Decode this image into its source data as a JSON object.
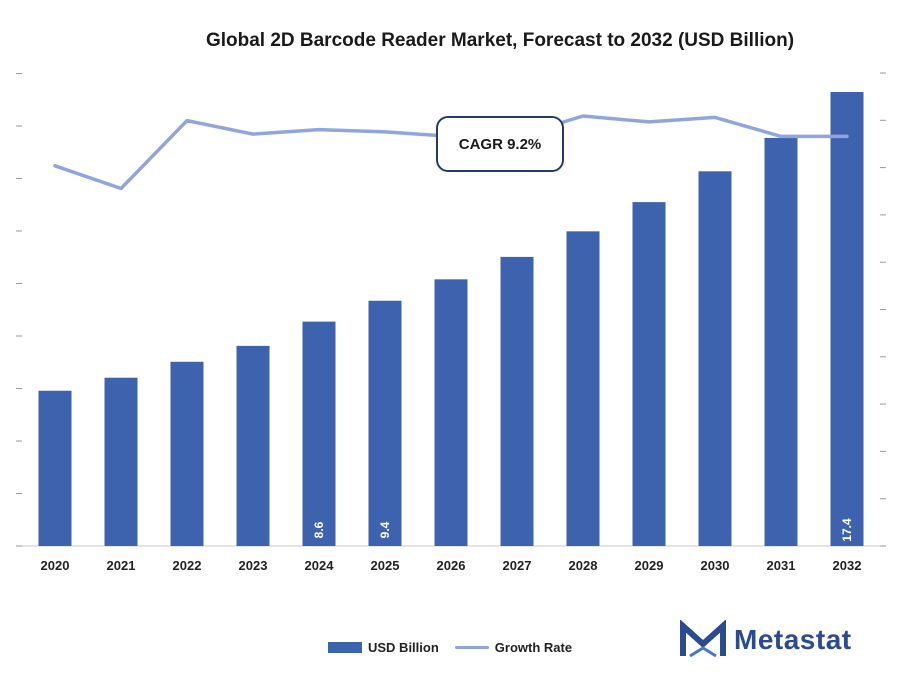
{
  "chart_data": {
    "type": "bar",
    "title": "Global 2D Barcode Reader Market, Forecast to 2032 (USD Billion)",
    "categories": [
      "2020",
      "2021",
      "2022",
      "2023",
      "2024",
      "2025",
      "2026",
      "2027",
      "2028",
      "2029",
      "2030",
      "2031",
      "2032"
    ],
    "series": [
      {
        "name": "USD Billion",
        "type": "bar",
        "color": "#3d62ae",
        "values": [
          5.95,
          6.45,
          7.06,
          7.67,
          8.6,
          9.4,
          10.22,
          11.08,
          12.06,
          13.18,
          14.36,
          15.64,
          17.4
        ]
      },
      {
        "name": "Growth Rate",
        "type": "line",
        "color": "#8fa5dc",
        "values": [
          0.84,
          0.79,
          0.94,
          0.91,
          0.92,
          0.915,
          0.905,
          0.905,
          0.95,
          0.937,
          0.947,
          0.905,
          0.905
        ]
      }
    ],
    "data_labels": [
      {
        "category": "2024",
        "text": "8.6"
      },
      {
        "category": "2025",
        "text": "9.4"
      },
      {
        "category": "2032",
        "text": "17.4"
      }
    ],
    "ylim": [
      0,
      17.4
    ],
    "xlabel": "",
    "ylabel": "",
    "legend_position": "bottom"
  },
  "annotation": {
    "cagr_text": "CAGR 9.2%"
  },
  "legend": {
    "bar_label": "USD Billion",
    "line_label": "Growth Rate"
  },
  "brand": {
    "name": "Metastat",
    "color": "#2a4c8f"
  }
}
